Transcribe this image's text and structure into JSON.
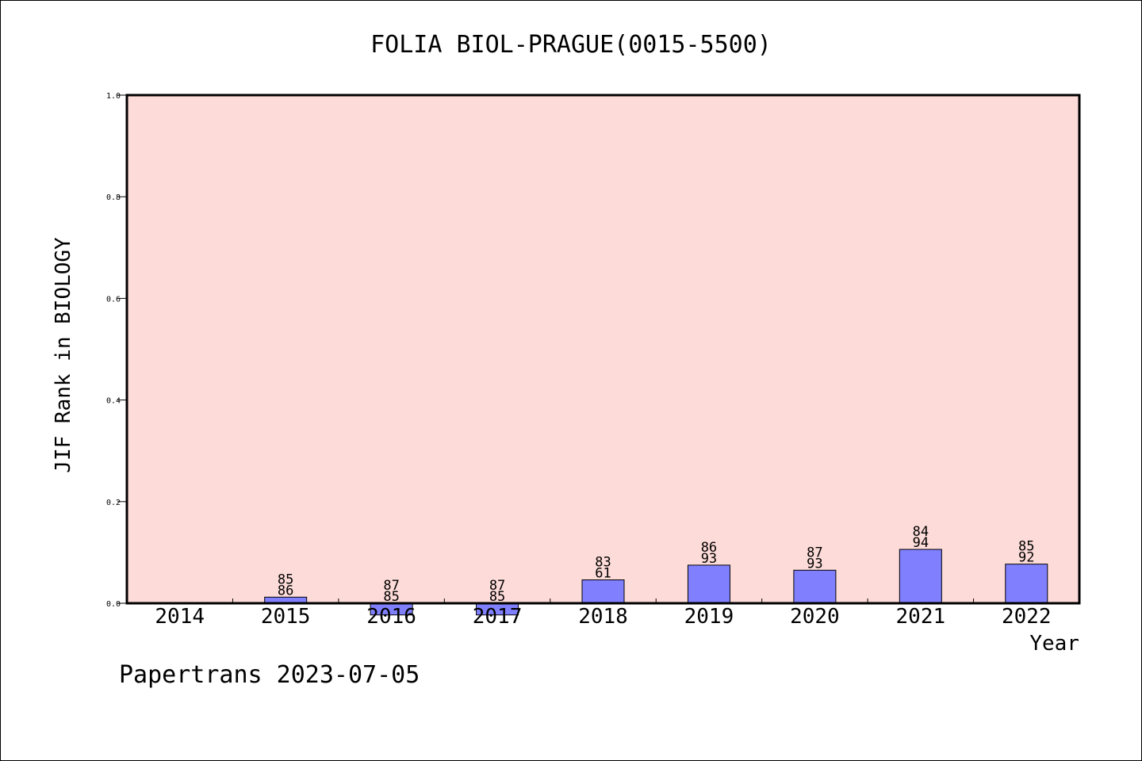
{
  "chart_data": {
    "type": "bar",
    "title": "FOLIA BIOL-PRAGUE(0015-5500)",
    "xlabel": "Year",
    "ylabel": "JIF Rank in BIOLOGY",
    "ylim": [
      0,
      1.0
    ],
    "yticks": [
      "0.0",
      "0.2",
      "0.4",
      "0.6",
      "0.8",
      "1.0"
    ],
    "categories": [
      "2014",
      "2015",
      "2016",
      "2017",
      "2018",
      "2019",
      "2020",
      "2021",
      "2022"
    ],
    "values": [
      0,
      0.012,
      -0.023,
      -0.023,
      0.046,
      0.075,
      0.065,
      0.106,
      0.077
    ],
    "label_top": [
      "",
      "85",
      "87",
      "87",
      "83",
      "86",
      "87",
      "84",
      "85"
    ],
    "label_bottom": [
      "",
      "86",
      "85",
      "85",
      "61",
      "93",
      "93",
      "94",
      "92"
    ],
    "grid": false,
    "colors": {
      "plot_bg": "#fddbd8",
      "bar": "#8080ff",
      "axis": "#000000"
    }
  },
  "footer": {
    "credit": "Papertrans 2023-07-05"
  }
}
